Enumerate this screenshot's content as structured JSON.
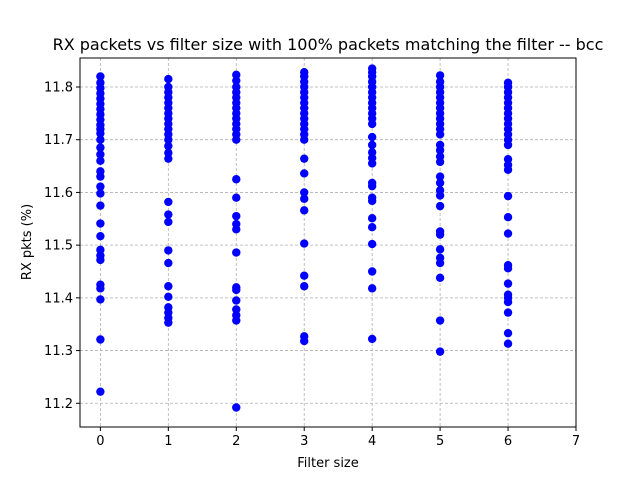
{
  "chart_data": {
    "type": "scatter",
    "title": "RX packets vs filter size with 100% packets matching the filter -- bcc",
    "xlabel": "Filter size",
    "ylabel": "RX pkts (%)",
    "xlim": [
      -0.3,
      7.0
    ],
    "ylim": [
      11.155,
      11.855
    ],
    "xticks": [
      "0",
      "1",
      "2",
      "3",
      "4",
      "5",
      "6",
      "7"
    ],
    "yticks": [
      "11.2",
      "11.3",
      "11.4",
      "11.5",
      "11.6",
      "11.7",
      "11.8"
    ],
    "grid": true,
    "marker_color": "#0000ff",
    "series": [
      {
        "points": [
          [
            0,
            11.222
          ],
          [
            0,
            11.321
          ],
          [
            0,
            11.397
          ],
          [
            0,
            11.418
          ],
          [
            0,
            11.425
          ],
          [
            0,
            11.472
          ],
          [
            0,
            11.48
          ],
          [
            0,
            11.491
          ],
          [
            0,
            11.517
          ],
          [
            0,
            11.541
          ],
          [
            0,
            11.575
          ],
          [
            0,
            11.598
          ],
          [
            0,
            11.611
          ],
          [
            0,
            11.63
          ],
          [
            0,
            11.64
          ],
          [
            0,
            11.66
          ],
          [
            0,
            11.672
          ],
          [
            0,
            11.685
          ],
          [
            0,
            11.7
          ],
          [
            0,
            11.712
          ],
          [
            0,
            11.72
          ],
          [
            0,
            11.728
          ],
          [
            0,
            11.738
          ],
          [
            0,
            11.748
          ],
          [
            0,
            11.758
          ],
          [
            0,
            11.768
          ],
          [
            0,
            11.778
          ],
          [
            0,
            11.788
          ],
          [
            0,
            11.798
          ],
          [
            0,
            11.808
          ],
          [
            0,
            11.82
          ],
          [
            1,
            11.353
          ],
          [
            1,
            11.362
          ],
          [
            1,
            11.372
          ],
          [
            1,
            11.382
          ],
          [
            1,
            11.402
          ],
          [
            1,
            11.422
          ],
          [
            1,
            11.466
          ],
          [
            1,
            11.49
          ],
          [
            1,
            11.544
          ],
          [
            1,
            11.558
          ],
          [
            1,
            11.582
          ],
          [
            1,
            11.664
          ],
          [
            1,
            11.675
          ],
          [
            1,
            11.688
          ],
          [
            1,
            11.7
          ],
          [
            1,
            11.71
          ],
          [
            1,
            11.72
          ],
          [
            1,
            11.73
          ],
          [
            1,
            11.74
          ],
          [
            1,
            11.75
          ],
          [
            1,
            11.76
          ],
          [
            1,
            11.77
          ],
          [
            1,
            11.78
          ],
          [
            1,
            11.79
          ],
          [
            1,
            11.8
          ],
          [
            1,
            11.815
          ],
          [
            2,
            11.192
          ],
          [
            2,
            11.357
          ],
          [
            2,
            11.367
          ],
          [
            2,
            11.378
          ],
          [
            2,
            11.395
          ],
          [
            2,
            11.415
          ],
          [
            2,
            11.42
          ],
          [
            2,
            11.486
          ],
          [
            2,
            11.53
          ],
          [
            2,
            11.54
          ],
          [
            2,
            11.555
          ],
          [
            2,
            11.59
          ],
          [
            2,
            11.625
          ],
          [
            2,
            11.7
          ],
          [
            2,
            11.71
          ],
          [
            2,
            11.72
          ],
          [
            2,
            11.73
          ],
          [
            2,
            11.74
          ],
          [
            2,
            11.75
          ],
          [
            2,
            11.76
          ],
          [
            2,
            11.77
          ],
          [
            2,
            11.78
          ],
          [
            2,
            11.79
          ],
          [
            2,
            11.8
          ],
          [
            2,
            11.812
          ],
          [
            2,
            11.823
          ],
          [
            3,
            11.318
          ],
          [
            3,
            11.327
          ],
          [
            3,
            11.422
          ],
          [
            3,
            11.442
          ],
          [
            3,
            11.503
          ],
          [
            3,
            11.566
          ],
          [
            3,
            11.588
          ],
          [
            3,
            11.6
          ],
          [
            3,
            11.636
          ],
          [
            3,
            11.664
          ],
          [
            3,
            11.7
          ],
          [
            3,
            11.71
          ],
          [
            3,
            11.72
          ],
          [
            3,
            11.73
          ],
          [
            3,
            11.74
          ],
          [
            3,
            11.75
          ],
          [
            3,
            11.76
          ],
          [
            3,
            11.77
          ],
          [
            3,
            11.78
          ],
          [
            3,
            11.79
          ],
          [
            3,
            11.8
          ],
          [
            3,
            11.81
          ],
          [
            3,
            11.82
          ],
          [
            3,
            11.828
          ],
          [
            4,
            11.322
          ],
          [
            4,
            11.418
          ],
          [
            4,
            11.45
          ],
          [
            4,
            11.502
          ],
          [
            4,
            11.534
          ],
          [
            4,
            11.551
          ],
          [
            4,
            11.584
          ],
          [
            4,
            11.59
          ],
          [
            4,
            11.612
          ],
          [
            4,
            11.618
          ],
          [
            4,
            11.655
          ],
          [
            4,
            11.665
          ],
          [
            4,
            11.676
          ],
          [
            4,
            11.69
          ],
          [
            4,
            11.705
          ],
          [
            4,
            11.73
          ],
          [
            4,
            11.74
          ],
          [
            4,
            11.75
          ],
          [
            4,
            11.76
          ],
          [
            4,
            11.77
          ],
          [
            4,
            11.78
          ],
          [
            4,
            11.79
          ],
          [
            4,
            11.8
          ],
          [
            4,
            11.81
          ],
          [
            4,
            11.82
          ],
          [
            4,
            11.828
          ],
          [
            4,
            11.835
          ],
          [
            5,
            11.298
          ],
          [
            5,
            11.357
          ],
          [
            5,
            11.438
          ],
          [
            5,
            11.466
          ],
          [
            5,
            11.476
          ],
          [
            5,
            11.492
          ],
          [
            5,
            11.52
          ],
          [
            5,
            11.526
          ],
          [
            5,
            11.574
          ],
          [
            5,
            11.594
          ],
          [
            5,
            11.604
          ],
          [
            5,
            11.618
          ],
          [
            5,
            11.63
          ],
          [
            5,
            11.658
          ],
          [
            5,
            11.668
          ],
          [
            5,
            11.68
          ],
          [
            5,
            11.69
          ],
          [
            5,
            11.71
          ],
          [
            5,
            11.72
          ],
          [
            5,
            11.73
          ],
          [
            5,
            11.74
          ],
          [
            5,
            11.75
          ],
          [
            5,
            11.76
          ],
          [
            5,
            11.77
          ],
          [
            5,
            11.78
          ],
          [
            5,
            11.79
          ],
          [
            5,
            11.8
          ],
          [
            5,
            11.81
          ],
          [
            5,
            11.822
          ],
          [
            6,
            11.313
          ],
          [
            6,
            11.333
          ],
          [
            6,
            11.372
          ],
          [
            6,
            11.392
          ],
          [
            6,
            11.4
          ],
          [
            6,
            11.406
          ],
          [
            6,
            11.427
          ],
          [
            6,
            11.456
          ],
          [
            6,
            11.462
          ],
          [
            6,
            11.522
          ],
          [
            6,
            11.553
          ],
          [
            6,
            11.593
          ],
          [
            6,
            11.643
          ],
          [
            6,
            11.652
          ],
          [
            6,
            11.663
          ],
          [
            6,
            11.69
          ],
          [
            6,
            11.7
          ],
          [
            6,
            11.71
          ],
          [
            6,
            11.72
          ],
          [
            6,
            11.73
          ],
          [
            6,
            11.74
          ],
          [
            6,
            11.75
          ],
          [
            6,
            11.76
          ],
          [
            6,
            11.77
          ],
          [
            6,
            11.78
          ],
          [
            6,
            11.79
          ],
          [
            6,
            11.8
          ],
          [
            6,
            11.808
          ]
        ]
      }
    ]
  }
}
